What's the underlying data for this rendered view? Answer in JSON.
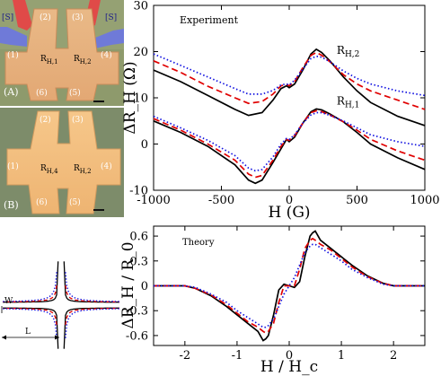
{
  "photos": {
    "top": {
      "panel_label": "(A)",
      "lead_labels": [
        "[S]",
        "[S]"
      ],
      "terminals": [
        "(1)",
        "(2)",
        "(3)",
        "(4)",
        "(5)",
        "(6)"
      ],
      "sensors": [
        "R",
        "R"
      ],
      "sensor_subs": [
        "H,1",
        "H,2"
      ]
    },
    "bottom": {
      "panel_label": "(B)",
      "terminals": [
        "(1)",
        "(2)",
        "(3)",
        "(4)",
        "(5)",
        "(6)"
      ],
      "sensors": [
        "R",
        "R"
      ],
      "sensor_subs": [
        "H,4",
        "H,2"
      ]
    }
  },
  "cross_diagram": {
    "width_label": "W",
    "length_label": "L"
  },
  "colors": {
    "series1": "#000000",
    "series2": "#e00000",
    "series3": "#1010e0"
  },
  "chart_data": [
    {
      "type": "line",
      "annotation": "Experiment",
      "xlabel": "H (G)",
      "ylabel": "ΔR_H (Ω)",
      "xlim": [
        -1000,
        1000
      ],
      "ylim": [
        -10,
        30
      ],
      "xticks": [
        -1000,
        -500,
        0,
        500,
        1000
      ],
      "yticks": [
        -10,
        0,
        10,
        20,
        30
      ],
      "curve_labels": [
        {
          "text": "R",
          "sub": "H,2",
          "x": 350,
          "y": 19.5
        },
        {
          "text": "R",
          "sub": "H,1",
          "x": 350,
          "y": 8.5
        }
      ],
      "groups": [
        {
          "label": "R_H,2",
          "x": [
            -1000,
            -800,
            -600,
            -400,
            -300,
            -200,
            -120,
            -60,
            -20,
            0,
            40,
            100,
            160,
            200,
            240,
            300,
            400,
            500,
            600,
            800,
            1000
          ],
          "series": [
            {
              "style": "solid",
              "values": [
                16,
                13.5,
                10.5,
                7.5,
                6.2,
                6.8,
                9.5,
                12,
                12.6,
                12.2,
                13,
                16,
                19.5,
                20.5,
                19.8,
                18,
                14.5,
                11.5,
                9,
                6,
                4
              ]
            },
            {
              "style": "dashed",
              "values": [
                18,
                15.5,
                12.5,
                10,
                8.8,
                9.2,
                10.8,
                12.6,
                12.9,
                12.6,
                13.5,
                16.5,
                19.2,
                19.8,
                19.2,
                17.8,
                15,
                13,
                11.5,
                9.5,
                7.5
              ]
            },
            {
              "style": "dotted",
              "values": [
                19.5,
                17,
                14.5,
                12,
                10.8,
                10.8,
                11.6,
                12.8,
                13,
                12.8,
                13.8,
                16.2,
                18.5,
                19,
                18.8,
                17.8,
                15.8,
                14.2,
                13,
                11.5,
                10.5
              ]
            }
          ]
        },
        {
          "label": "R_H,1",
          "x": [
            -1000,
            -800,
            -600,
            -400,
            -300,
            -250,
            -200,
            -120,
            -60,
            -20,
            0,
            40,
            100,
            160,
            200,
            240,
            300,
            400,
            500,
            600,
            800,
            1000
          ],
          "series": [
            {
              "style": "solid",
              "values": [
                5,
                2.5,
                -0.5,
                -4.5,
                -7.8,
                -8.5,
                -7.8,
                -4,
                -1,
                1,
                0.5,
                1.5,
                4.5,
                7,
                7.6,
                7.4,
                6.5,
                4.8,
                2.5,
                0,
                -3,
                -5.5
              ]
            },
            {
              "style": "dashed",
              "values": [
                5.5,
                3,
                0,
                -3.5,
                -6.5,
                -7.2,
                -6.8,
                -3.5,
                -0.5,
                1,
                0.8,
                1.8,
                4.5,
                6.8,
                7.2,
                7,
                6.3,
                4.8,
                3,
                1,
                -1.5,
                -3.5
              ]
            },
            {
              "style": "dotted",
              "values": [
                6,
                3.5,
                0.8,
                -2.5,
                -5.2,
                -5.8,
                -5.5,
                -2.8,
                0,
                1.2,
                1,
                2,
                4.5,
                6.3,
                6.8,
                6.8,
                6.2,
                5,
                3.5,
                2,
                0.5,
                -0.5
              ]
            }
          ]
        }
      ]
    },
    {
      "type": "line",
      "annotation": "Theory",
      "xlabel": "H / H_c",
      "ylabel": "ΔR_H / R_0",
      "xlim": [
        -2.6,
        2.6
      ],
      "ylim": [
        -0.72,
        0.72
      ],
      "xticks": [
        -2,
        -1,
        0,
        1,
        2
      ],
      "yticks": [
        -0.6,
        -0.3,
        0,
        0.3,
        0.6
      ],
      "x": [
        -2.6,
        -2.0,
        -1.8,
        -1.5,
        -1.2,
        -1.0,
        -0.8,
        -0.6,
        -0.5,
        -0.45,
        -0.4,
        -0.3,
        -0.2,
        -0.1,
        0,
        0.1,
        0.2,
        0.3,
        0.4,
        0.45,
        0.5,
        0.6,
        0.8,
        1.0,
        1.2,
        1.5,
        1.8,
        2.0,
        2.6
      ],
      "series": [
        {
          "style": "solid",
          "values": [
            0,
            0,
            -0.03,
            -0.12,
            -0.25,
            -0.35,
            -0.45,
            -0.55,
            -0.66,
            -0.64,
            -0.6,
            -0.35,
            -0.05,
            0.02,
            0,
            -0.02,
            0.05,
            0.35,
            0.6,
            0.64,
            0.66,
            0.55,
            0.45,
            0.35,
            0.25,
            0.12,
            0.03,
            0,
            0
          ]
        },
        {
          "style": "dashed",
          "values": [
            0,
            0,
            -0.03,
            -0.11,
            -0.23,
            -0.33,
            -0.43,
            -0.5,
            -0.55,
            -0.57,
            -0.55,
            -0.45,
            -0.2,
            0,
            0,
            0,
            0.2,
            0.45,
            0.55,
            0.57,
            0.55,
            0.5,
            0.43,
            0.33,
            0.23,
            0.11,
            0.03,
            0,
            0
          ]
        },
        {
          "style": "dotted",
          "values": [
            0,
            0,
            -0.02,
            -0.1,
            -0.2,
            -0.3,
            -0.38,
            -0.46,
            -0.5,
            -0.5,
            -0.48,
            -0.4,
            -0.25,
            -0.1,
            0,
            0.1,
            0.25,
            0.4,
            0.48,
            0.5,
            0.5,
            0.46,
            0.38,
            0.3,
            0.2,
            0.1,
            0.02,
            0,
            0
          ]
        }
      ]
    }
  ]
}
